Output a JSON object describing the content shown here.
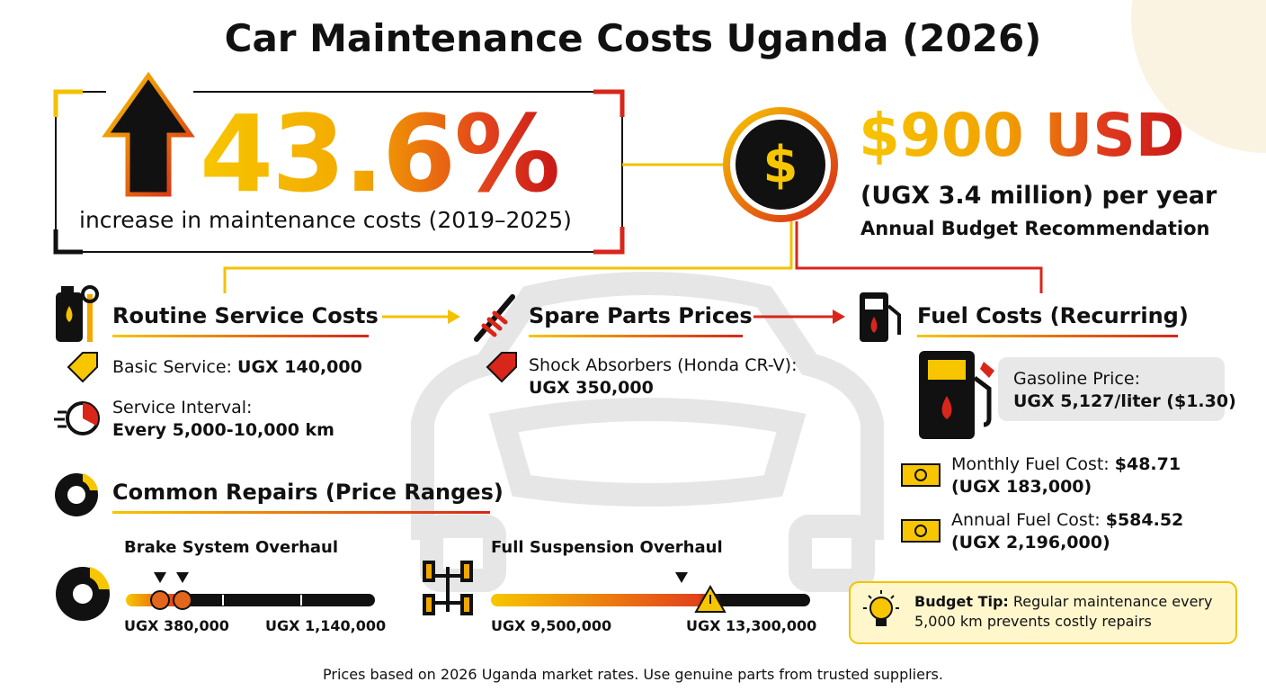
{
  "header": {
    "title": "Car Maintenance Costs Uganda (2026)"
  },
  "highlight": {
    "value": "43.6%",
    "caption": "increase in maintenance costs (2019–2025)"
  },
  "budget": {
    "amount": "$900 USD",
    "local": "(UGX 3.4 million) per year",
    "label": "Annual Budget Recommendation"
  },
  "routine": {
    "heading": "Routine Service Costs",
    "items": [
      {
        "label": "Basic Service:",
        "value": "UGX 140,000"
      },
      {
        "label": "Service Interval:",
        "value": "Every 5,000-10,000 km"
      }
    ]
  },
  "spare_parts": {
    "heading": "Spare Parts Prices",
    "items": [
      {
        "label": "Shock Absorbers (Honda CR-V):",
        "value": "UGX 350,000"
      }
    ]
  },
  "fuel": {
    "heading": "Fuel Costs (Recurring)",
    "gasoline": {
      "label": "Gasoline Price:",
      "value": "UGX 5,127/liter ($1.30)"
    },
    "items": [
      {
        "label": "Monthly Fuel Cost:",
        "value": "$48.71",
        "local": "(UGX 183,000)"
      },
      {
        "label": "Annual Fuel Cost:",
        "value": "$584.52",
        "local": "(UGX 2,196,000)"
      }
    ]
  },
  "repairs": {
    "heading": "Common Repairs (Price Ranges)",
    "ranges": [
      {
        "name": "Brake System Overhaul",
        "low": "UGX 380,000",
        "high": "UGX 1,140,000"
      },
      {
        "name": "Full Suspension Overhaul",
        "low": "UGX 9,500,000",
        "high": "UGX 13,300,000"
      }
    ]
  },
  "tip": {
    "label": "Budget Tip:",
    "text": "Regular maintenance every 5,000 km prevents costly repairs"
  },
  "footer": {
    "note": "Prices based on 2026 Uganda market rates. Use genuine parts from trusted suppliers."
  }
}
